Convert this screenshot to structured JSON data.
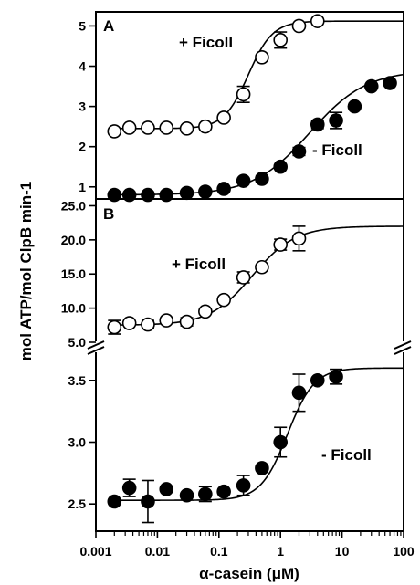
{
  "chart_data": [
    {
      "type": "scatter",
      "panel": "A",
      "xlabel": "α-casein (μM)",
      "ylabel": "mol ATP/mol ClpB min-1",
      "x_scale": "log",
      "xlim": [
        0.001,
        100
      ],
      "ylim": [
        0.7,
        5.35
      ],
      "yticks": [
        1,
        2,
        3,
        4,
        5
      ],
      "annotations": [
        "+ Ficoll",
        "- Ficoll"
      ],
      "series": [
        {
          "name": "+ Ficoll",
          "marker": "open-circle",
          "x": [
            0.002,
            0.0035,
            0.007,
            0.014,
            0.03,
            0.06,
            0.12,
            0.25,
            0.5,
            1.0,
            2.0,
            4.0
          ],
          "y": [
            2.38,
            2.47,
            2.47,
            2.47,
            2.45,
            2.5,
            2.72,
            3.3,
            4.22,
            4.65,
            5.0,
            5.12
          ],
          "err": [
            0,
            0,
            0,
            0,
            0,
            0,
            0,
            0.2,
            0,
            0.2,
            0,
            0
          ],
          "fit": {
            "bottom": 2.45,
            "top": 5.12,
            "ec50": 0.3,
            "hill": 2.2
          }
        },
        {
          "name": "- Ficoll",
          "marker": "filled-circle",
          "x": [
            0.002,
            0.0035,
            0.007,
            0.014,
            0.03,
            0.06,
            0.12,
            0.25,
            0.5,
            1.0,
            2.0,
            4.0,
            8.0,
            16.0,
            30.0,
            60.0
          ],
          "y": [
            0.8,
            0.8,
            0.8,
            0.8,
            0.85,
            0.88,
            0.95,
            1.15,
            1.2,
            1.5,
            1.88,
            2.55,
            2.65,
            3.0,
            3.5,
            3.58
          ],
          "err": [
            0,
            0,
            0,
            0,
            0,
            0,
            0,
            0,
            0.08,
            0,
            0.1,
            0.1,
            0.2,
            0,
            0,
            0
          ],
          "fit": {
            "bottom": 0.8,
            "top": 3.9,
            "ec50": 3.0,
            "hill": 0.95
          }
        }
      ]
    },
    {
      "type": "scatter",
      "panel": "B",
      "xlabel": "α-casein (μM)",
      "ylabel": "mol ATP/mol ClpB min-1",
      "x_scale": "log",
      "xlim": [
        0.001,
        100
      ],
      "axis_break": true,
      "ylim_upper": [
        5.0,
        26.0
      ],
      "yticks_upper": [
        5.0,
        10.0,
        15.0,
        20.0,
        25.0
      ],
      "ylim_lower": [
        2.28,
        3.72
      ],
      "yticks_lower": [
        2.5,
        3.0,
        3.5
      ],
      "xticks": [
        "0.001",
        "0.01",
        "0.1",
        "1",
        "10",
        "100"
      ],
      "annotations": [
        "+ Ficoll",
        "- Ficoll"
      ],
      "series": [
        {
          "name": "+ Ficoll",
          "marker": "open-circle",
          "x": [
            0.002,
            0.0035,
            0.007,
            0.014,
            0.03,
            0.06,
            0.12,
            0.25,
            0.5,
            1.0,
            2.0
          ],
          "y": [
            7.2,
            7.8,
            7.6,
            8.2,
            8.0,
            9.5,
            11.2,
            14.5,
            16.0,
            19.3,
            20.2
          ],
          "err": [
            1.0,
            0,
            0.6,
            0,
            0.6,
            0,
            0,
            0.8,
            0,
            0.8,
            1.8
          ],
          "fit": {
            "bottom": 7.5,
            "top": 22.0,
            "ec50": 0.35,
            "hill": 1.25
          }
        },
        {
          "name": "- Ficoll",
          "marker": "filled-circle",
          "x": [
            0.002,
            0.0035,
            0.007,
            0.014,
            0.03,
            0.06,
            0.12,
            0.25,
            0.5,
            1.0,
            2.0,
            4.0,
            8.0
          ],
          "y": [
            2.52,
            2.63,
            2.52,
            2.62,
            2.57,
            2.58,
            2.6,
            2.65,
            2.79,
            3.0,
            3.4,
            3.5,
            3.53
          ],
          "err": [
            0,
            0.07,
            0.17,
            0,
            0,
            0.06,
            0,
            0.08,
            0,
            0.12,
            0.15,
            0,
            0.06
          ],
          "fit": {
            "bottom": 2.53,
            "top": 3.6,
            "ec50": 1.3,
            "hill": 2.0
          }
        }
      ]
    }
  ]
}
